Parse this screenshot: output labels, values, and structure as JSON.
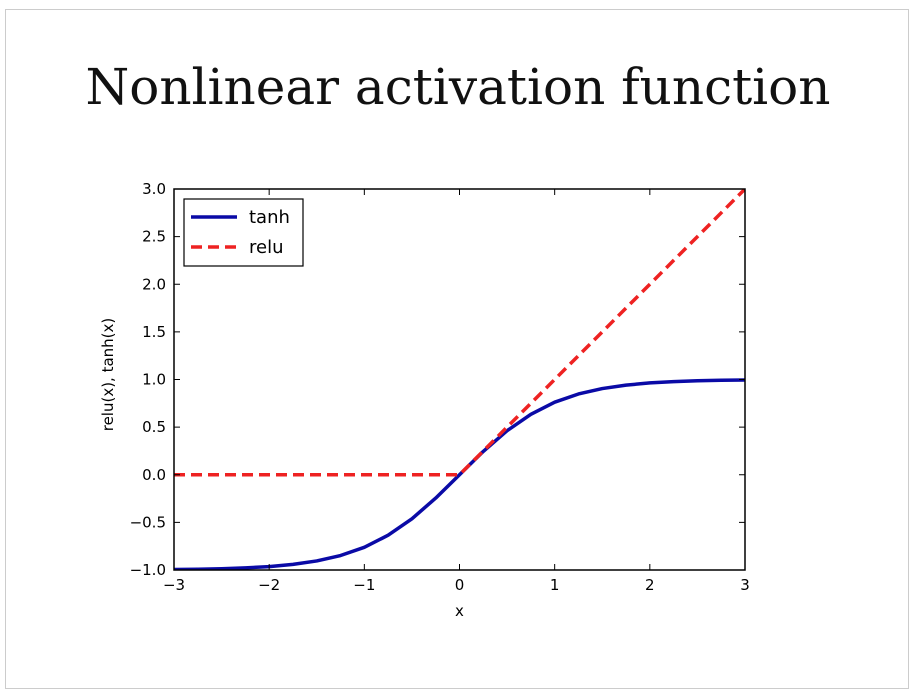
{
  "slide": {
    "title": "Nonlinear activation function"
  },
  "chart_data": {
    "type": "line",
    "title": "",
    "xlabel": "x",
    "ylabel": "relu(x), tanh(x)",
    "xlim": [
      -3,
      3
    ],
    "ylim": [
      -1.0,
      3.0
    ],
    "xticks": [
      -3,
      -2,
      -1,
      0,
      1,
      2,
      3
    ],
    "xtick_labels": [
      "−3",
      "−2",
      "−1",
      "0",
      "1",
      "2",
      "3"
    ],
    "yticks": [
      -1.0,
      -0.5,
      0.0,
      0.5,
      1.0,
      1.5,
      2.0,
      2.5,
      3.0
    ],
    "ytick_labels": [
      "−1.0",
      "−0.5",
      "0.0",
      "0.5",
      "1.0",
      "1.5",
      "2.0",
      "2.5",
      "3.0"
    ],
    "grid": false,
    "legend_position": "top-left",
    "series": [
      {
        "name": "tanh",
        "color": "#0a0aa6",
        "style": "solid",
        "x": [
          -3.0,
          -2.75,
          -2.5,
          -2.25,
          -2.0,
          -1.75,
          -1.5,
          -1.25,
          -1.0,
          -0.75,
          -0.5,
          -0.25,
          0.0,
          0.25,
          0.5,
          0.75,
          1.0,
          1.25,
          1.5,
          1.75,
          2.0,
          2.25,
          2.5,
          2.75,
          3.0
        ],
        "y": [
          -0.995,
          -0.992,
          -0.987,
          -0.978,
          -0.964,
          -0.941,
          -0.905,
          -0.848,
          -0.762,
          -0.635,
          -0.462,
          -0.245,
          0.0,
          0.245,
          0.462,
          0.635,
          0.762,
          0.848,
          0.905,
          0.941,
          0.964,
          0.978,
          0.987,
          0.992,
          0.995
        ]
      },
      {
        "name": "relu",
        "color": "#ee2222",
        "style": "dashed",
        "x": [
          -3.0,
          0.0,
          3.0
        ],
        "y": [
          0.0,
          0.0,
          3.0
        ]
      }
    ]
  }
}
